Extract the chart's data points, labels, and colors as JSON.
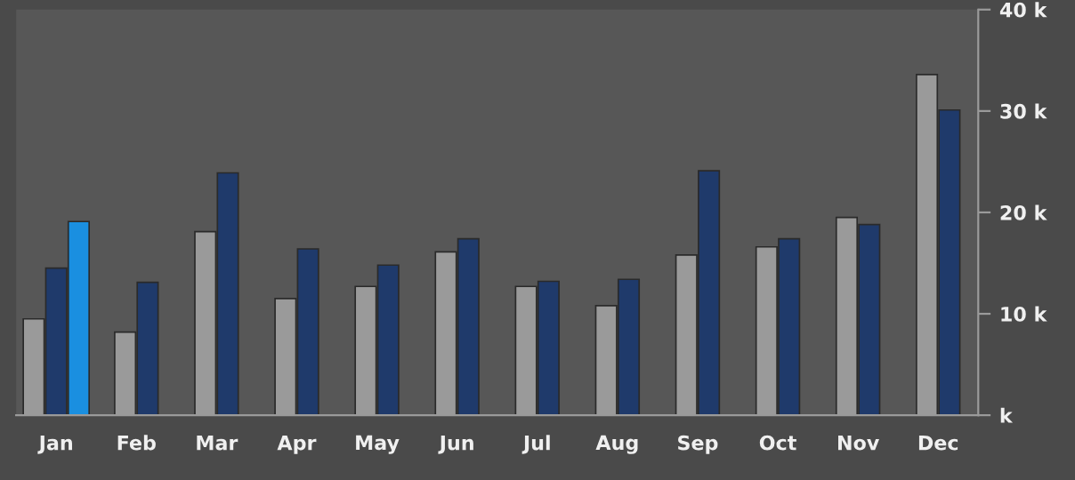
{
  "chart_data": {
    "type": "bar",
    "categories": [
      "Jan",
      "Feb",
      "Mar",
      "Apr",
      "May",
      "Jun",
      "Jul",
      "Aug",
      "Sep",
      "Oct",
      "Nov",
      "Dec"
    ],
    "series": [
      {
        "color": "#9a9a9a",
        "values": [
          9500,
          8200,
          18100,
          11500,
          12700,
          16100,
          12700,
          10800,
          15800,
          16600,
          19500,
          33600
        ]
      },
      {
        "color": "#1f3a6b",
        "values": [
          14500,
          13100,
          23900,
          16400,
          14800,
          17400,
          13200,
          13400,
          24100,
          17400,
          18800,
          30100
        ]
      },
      {
        "color": "#1a8fe0",
        "values": [
          19100,
          null,
          null,
          null,
          null,
          null,
          null,
          null,
          null,
          null,
          null,
          null
        ]
      }
    ],
    "ylim": [
      0,
      40000
    ],
    "yticks": [
      {
        "value": 0,
        "label": "k"
      },
      {
        "value": 10000,
        "label": "10 k"
      },
      {
        "value": 20000,
        "label": "20 k"
      },
      {
        "value": 30000,
        "label": "30 k"
      },
      {
        "value": 40000,
        "label": "40 k"
      }
    ],
    "grid": false,
    "legend": false
  }
}
